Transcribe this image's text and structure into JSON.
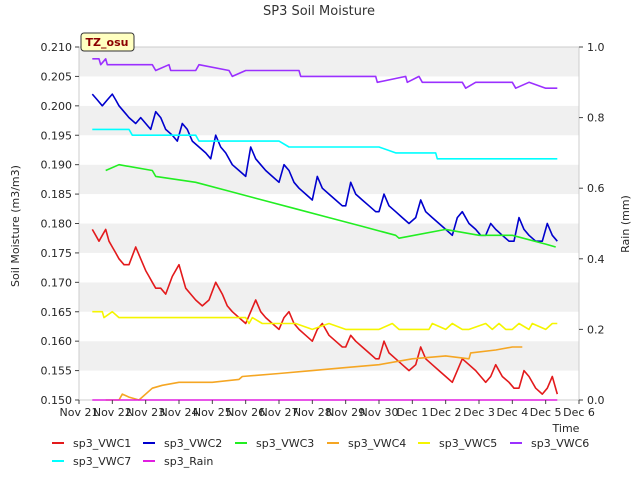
{
  "chart_data": {
    "type": "line",
    "title": "SP3 Soil Moisture",
    "xlabel": "Time",
    "ylabel": "Soil Moisture (m3/m3)",
    "y2label": "Rain (mm)",
    "annotation": "TZ_osu",
    "xlim": [
      0,
      15
    ],
    "ylim": [
      0.15,
      0.21
    ],
    "y2lim": [
      0.0,
      1.0
    ],
    "grid": "horizontal bands",
    "x_ticks": [
      {
        "x": 0,
        "label": "Nov 21"
      },
      {
        "x": 1,
        "label": "Nov 22"
      },
      {
        "x": 2,
        "label": "Nov 23"
      },
      {
        "x": 3,
        "label": "Nov 24"
      },
      {
        "x": 4,
        "label": "Nov 25"
      },
      {
        "x": 5,
        "label": "Nov 26"
      },
      {
        "x": 6,
        "label": "Nov 27"
      },
      {
        "x": 7,
        "label": "Nov 28"
      },
      {
        "x": 8,
        "label": "Nov 29"
      },
      {
        "x": 9,
        "label": "Nov 30"
      },
      {
        "x": 10,
        "label": "Dec 1"
      },
      {
        "x": 11,
        "label": "Dec 2"
      },
      {
        "x": 12,
        "label": "Dec 3"
      },
      {
        "x": 13,
        "label": "Dec 4"
      },
      {
        "x": 14,
        "label": "Dec 5"
      },
      {
        "x": 15,
        "label": "Dec 6"
      }
    ],
    "y_ticks": [
      {
        "v": 0.15,
        "label": "0.150"
      },
      {
        "v": 0.155,
        "label": "0.155"
      },
      {
        "v": 0.16,
        "label": "0.160"
      },
      {
        "v": 0.165,
        "label": "0.165"
      },
      {
        "v": 0.17,
        "label": "0.170"
      },
      {
        "v": 0.175,
        "label": "0.175"
      },
      {
        "v": 0.18,
        "label": "0.180"
      },
      {
        "v": 0.185,
        "label": "0.185"
      },
      {
        "v": 0.19,
        "label": "0.190"
      },
      {
        "v": 0.195,
        "label": "0.195"
      },
      {
        "v": 0.2,
        "label": "0.200"
      },
      {
        "v": 0.205,
        "label": "0.205"
      },
      {
        "v": 0.21,
        "label": "0.210"
      }
    ],
    "y2_ticks": [
      {
        "v": 0.0,
        "label": "0.0"
      },
      {
        "v": 0.2,
        "label": "0.2"
      },
      {
        "v": 0.4,
        "label": "0.4"
      },
      {
        "v": 0.6,
        "label": "0.6"
      },
      {
        "v": 0.8,
        "label": "0.8"
      },
      {
        "v": 1.0,
        "label": "1.0"
      }
    ],
    "series": [
      {
        "name": "sp3_VWC1",
        "color": "#e31a1c",
        "axis": "left",
        "x": [
          0.4,
          0.5,
          0.6,
          0.7,
          0.8,
          0.9,
          1.0,
          1.1,
          1.2,
          1.35,
          1.5,
          1.7,
          1.85,
          2.0,
          2.1,
          2.2,
          2.3,
          2.45,
          2.6,
          2.8,
          3.0,
          3.1,
          3.2,
          3.35,
          3.5,
          3.7,
          3.9,
          4.1,
          4.2,
          4.3,
          4.45,
          4.6,
          4.8,
          5.0,
          5.15,
          5.3,
          5.45,
          5.6,
          5.8,
          6.0,
          6.15,
          6.3,
          6.45,
          6.6,
          6.8,
          7.0,
          7.15,
          7.3,
          7.5,
          7.7,
          7.9,
          8.0,
          8.15,
          8.3,
          8.5,
          8.7,
          8.9,
          9.0,
          9.15,
          9.3,
          9.5,
          9.7,
          9.9,
          10.1,
          10.25,
          10.4,
          10.6,
          10.8,
          11.0,
          11.2,
          11.35,
          11.5,
          11.7,
          11.9,
          12.05,
          12.2,
          12.35,
          12.5,
          12.7,
          12.9,
          13.05,
          13.2,
          13.35,
          13.5,
          13.7,
          13.9,
          14.05,
          14.2,
          14.35
        ],
        "values": [
          0.179,
          0.178,
          0.177,
          0.178,
          0.179,
          0.177,
          0.176,
          0.175,
          0.174,
          0.173,
          0.173,
          0.176,
          0.174,
          0.172,
          0.171,
          0.17,
          0.169,
          0.169,
          0.168,
          0.171,
          0.173,
          0.171,
          0.169,
          0.168,
          0.167,
          0.166,
          0.167,
          0.17,
          0.169,
          0.168,
          0.166,
          0.165,
          0.164,
          0.163,
          0.165,
          0.167,
          0.165,
          0.164,
          0.163,
          0.162,
          0.164,
          0.165,
          0.163,
          0.162,
          0.161,
          0.16,
          0.162,
          0.163,
          0.161,
          0.16,
          0.159,
          0.159,
          0.161,
          0.16,
          0.159,
          0.158,
          0.157,
          0.157,
          0.16,
          0.158,
          0.157,
          0.156,
          0.155,
          0.156,
          0.159,
          0.157,
          0.156,
          0.155,
          0.154,
          0.153,
          0.155,
          0.157,
          0.156,
          0.155,
          0.154,
          0.153,
          0.154,
          0.156,
          0.154,
          0.153,
          0.152,
          0.152,
          0.155,
          0.154,
          0.152,
          0.151,
          0.152,
          0.154,
          0.151
        ]
      },
      {
        "name": "sp3_VWC2",
        "color": "#0000cd",
        "axis": "left",
        "x": [
          0.4,
          0.55,
          0.7,
          0.85,
          1.0,
          1.1,
          1.2,
          1.35,
          1.5,
          1.7,
          1.85,
          2.0,
          2.15,
          2.3,
          2.45,
          2.6,
          2.8,
          2.95,
          3.1,
          3.25,
          3.4,
          3.6,
          3.8,
          3.95,
          4.1,
          4.25,
          4.4,
          4.6,
          4.8,
          5.0,
          5.15,
          5.3,
          5.45,
          5.6,
          5.8,
          6.0,
          6.15,
          6.3,
          6.45,
          6.6,
          6.8,
          7.0,
          7.15,
          7.3,
          7.5,
          7.7,
          7.9,
          8.0,
          8.15,
          8.3,
          8.5,
          8.7,
          8.9,
          9.0,
          9.15,
          9.3,
          9.5,
          9.7,
          9.9,
          10.1,
          10.25,
          10.4,
          10.6,
          10.8,
          11.0,
          11.2,
          11.35,
          11.5,
          11.7,
          11.9,
          12.05,
          12.2,
          12.35,
          12.5,
          12.7,
          12.9,
          13.05,
          13.2,
          13.35,
          13.5,
          13.7,
          13.9,
          14.05,
          14.2,
          14.35
        ],
        "values": [
          0.202,
          0.201,
          0.2,
          0.201,
          0.202,
          0.201,
          0.2,
          0.199,
          0.198,
          0.197,
          0.198,
          0.197,
          0.196,
          0.199,
          0.198,
          0.196,
          0.195,
          0.194,
          0.197,
          0.196,
          0.194,
          0.193,
          0.192,
          0.191,
          0.195,
          0.193,
          0.192,
          0.19,
          0.189,
          0.188,
          0.193,
          0.191,
          0.19,
          0.189,
          0.188,
          0.187,
          0.19,
          0.189,
          0.187,
          0.186,
          0.185,
          0.184,
          0.188,
          0.186,
          0.185,
          0.184,
          0.183,
          0.183,
          0.187,
          0.185,
          0.184,
          0.183,
          0.182,
          0.182,
          0.185,
          0.183,
          0.182,
          0.181,
          0.18,
          0.181,
          0.184,
          0.182,
          0.181,
          0.18,
          0.179,
          0.178,
          0.181,
          0.182,
          0.18,
          0.179,
          0.178,
          0.178,
          0.18,
          0.179,
          0.178,
          0.177,
          0.177,
          0.181,
          0.179,
          0.178,
          0.177,
          0.177,
          0.18,
          0.178,
          0.177
        ]
      },
      {
        "name": "sp3_VWC3",
        "color": "#22ee22",
        "axis": "left",
        "x": [
          0.8,
          1.2,
          2.2,
          2.3,
          3.5,
          4.5,
          5.5,
          6.5,
          7.5,
          8.5,
          9.5,
          9.6,
          11.0,
          12.0,
          13.0,
          14.0,
          14.3
        ],
        "values": [
          0.189,
          0.19,
          0.189,
          0.188,
          0.187,
          0.1855,
          0.184,
          0.1825,
          0.181,
          0.1795,
          0.178,
          0.1775,
          0.179,
          0.178,
          0.178,
          0.1765,
          0.176
        ]
      },
      {
        "name": "sp3_VWC4",
        "color": "#f5a623",
        "axis": "left",
        "x": [
          0.8,
          1.2,
          1.3,
          1.5,
          1.8,
          2.2,
          2.5,
          3.0,
          4.0,
          4.8,
          4.9,
          6.0,
          7.0,
          8.0,
          9.0,
          10.0,
          11.0,
          11.7,
          11.75,
          12.5,
          13.0,
          13.3
        ],
        "values": [
          0.15,
          0.15,
          0.151,
          0.1505,
          0.15,
          0.152,
          0.1525,
          0.153,
          0.153,
          0.1535,
          0.154,
          0.1545,
          0.155,
          0.1555,
          0.156,
          0.157,
          0.1575,
          0.157,
          0.158,
          0.1585,
          0.159,
          0.159
        ]
      },
      {
        "name": "sp3_VWC5",
        "color": "#f5f500",
        "axis": "left",
        "x": [
          0.4,
          0.7,
          0.75,
          1.0,
          1.2,
          1.3,
          4.5,
          5.0,
          5.1,
          5.2,
          5.5,
          6.0,
          6.5,
          7.0,
          7.5,
          8.0,
          8.5,
          9.0,
          9.4,
          9.6,
          10.5,
          10.6,
          11.0,
          11.2,
          11.5,
          11.7,
          12.2,
          12.4,
          12.6,
          12.8,
          13.0,
          13.2,
          13.5,
          13.6,
          14.0,
          14.2,
          14.35
        ],
        "values": [
          0.165,
          0.165,
          0.164,
          0.165,
          0.164,
          0.164,
          0.164,
          0.164,
          0.163,
          0.164,
          0.163,
          0.163,
          0.163,
          0.162,
          0.163,
          0.162,
          0.162,
          0.162,
          0.163,
          0.162,
          0.162,
          0.163,
          0.162,
          0.163,
          0.162,
          0.162,
          0.163,
          0.162,
          0.163,
          0.162,
          0.162,
          0.163,
          0.162,
          0.163,
          0.162,
          0.163,
          0.163
        ]
      },
      {
        "name": "sp3_VWC6",
        "color": "#9b30ff",
        "axis": "left",
        "x": [
          0.4,
          0.6,
          0.65,
          0.8,
          0.85,
          1.2,
          2.2,
          2.3,
          2.7,
          2.75,
          3.5,
          3.6,
          4.5,
          4.6,
          5.0,
          5.05,
          6.0,
          6.6,
          6.65,
          7.0,
          7.5,
          8.0,
          8.9,
          8.95,
          9.8,
          9.85,
          10.2,
          10.3,
          11.5,
          11.6,
          11.9,
          12.0,
          12.5,
          13.0,
          13.1,
          13.5,
          14.0,
          14.35
        ],
        "values": [
          0.208,
          0.208,
          0.207,
          0.208,
          0.207,
          0.207,
          0.207,
          0.206,
          0.207,
          0.206,
          0.206,
          0.207,
          0.206,
          0.205,
          0.206,
          0.206,
          0.206,
          0.206,
          0.205,
          0.205,
          0.205,
          0.205,
          0.205,
          0.204,
          0.205,
          0.204,
          0.205,
          0.204,
          0.204,
          0.203,
          0.204,
          0.204,
          0.204,
          0.204,
          0.203,
          0.204,
          0.203,
          0.203
        ]
      },
      {
        "name": "sp3_VWC7",
        "color": "#00ffff",
        "axis": "left",
        "x": [
          0.4,
          1.5,
          1.6,
          2.0,
          2.2,
          2.5,
          3.5,
          3.6,
          4.0,
          4.5,
          5.0,
          5.5,
          6.0,
          6.3,
          6.4,
          7.0,
          8.0,
          9.0,
          9.5,
          10.0,
          10.7,
          10.75,
          11.0,
          11.5,
          12.0,
          12.5,
          13.0,
          13.5,
          14.0,
          14.35
        ],
        "values": [
          0.196,
          0.196,
          0.195,
          0.195,
          0.195,
          0.195,
          0.195,
          0.194,
          0.194,
          0.194,
          0.194,
          0.194,
          0.194,
          0.193,
          0.193,
          0.193,
          0.193,
          0.193,
          0.192,
          0.192,
          0.192,
          0.191,
          0.191,
          0.191,
          0.191,
          0.191,
          0.191,
          0.191,
          0.191,
          0.191
        ]
      },
      {
        "name": "sp3_Rain",
        "color": "#e01ee0",
        "axis": "right",
        "x": [
          0.4,
          14.35
        ],
        "values": [
          0.0,
          0.0
        ]
      }
    ],
    "legend": [
      {
        "name": "sp3_VWC1",
        "color": "#e31a1c"
      },
      {
        "name": "sp3_VWC2",
        "color": "#0000cd"
      },
      {
        "name": "sp3_VWC3",
        "color": "#22ee22"
      },
      {
        "name": "sp3_VWC4",
        "color": "#f5a623"
      },
      {
        "name": "sp3_VWC5",
        "color": "#f5f500"
      },
      {
        "name": "sp3_VWC6",
        "color": "#9b30ff"
      },
      {
        "name": "sp3_VWC7",
        "color": "#00ffff"
      },
      {
        "name": "sp3_Rain",
        "color": "#e01ee0"
      }
    ],
    "legend_position": "bottom"
  }
}
